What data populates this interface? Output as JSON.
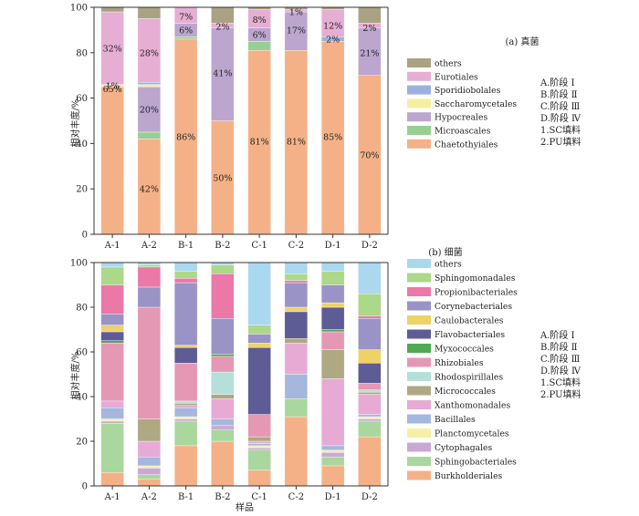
{
  "colors": {
    "Chaetothyiales": "#f4b187",
    "Microascales": "#97cf93",
    "Hypocreales": "#bca6ce",
    "Saccharomycetales": "#f6ef9f",
    "Sporidiobolales": "#9cb2dc",
    "Eurotiales": "#e6aed2",
    "others_fungi": "#a9a384",
    "Burkholderiales": "#f4b187",
    "Sphingobacteriales": "#a9d79d",
    "Cytophagales": "#c9a9d3",
    "Planctomycetales": "#f7efa9",
    "Bacillales": "#a5b7dd",
    "Xanthomonadales": "#e7aad5",
    "Micrococcales": "#aea883",
    "Rhodospirillales": "#b5dfd9",
    "Rhizobiales": "#e598b3",
    "Myxococcales": "#4fa854",
    "Flavobacteriales": "#5e5c95",
    "Caulobacterales": "#efd265",
    "Corynebacteriales": "#9a93c6",
    "Propionibacteriales": "#ea79a8",
    "Sphingomonadales": "#acd889",
    "others_bacteria": "#a9d8ef"
  },
  "stage_legend": [
    "A.阶段 Ⅰ",
    "B.阶段 Ⅱ",
    "C.阶段 Ⅲ",
    "D.阶段 Ⅳ",
    "1.SC填料",
    "2.PU填料"
  ],
  "common_xlabel": "样品",
  "chart_data": [
    {
      "type": "bar",
      "stacked": true,
      "title": "(a) 真菌",
      "ylabel": "相对丰度/%",
      "ylim": [
        0,
        100
      ],
      "yticks": [
        0,
        20,
        40,
        60,
        80,
        100
      ],
      "categories": [
        "A-1",
        "A-2",
        "B-1",
        "B-2",
        "C-1",
        "C-2",
        "D-1",
        "D-2"
      ],
      "series": [
        {
          "name": "Chaetothyiales",
          "color_key": "Chaetothyiales",
          "values": [
            65,
            42,
            86,
            50,
            81,
            81,
            85,
            70
          ]
        },
        {
          "name": "Microascales",
          "color_key": "Microascales",
          "values": [
            0,
            3,
            1,
            0,
            4,
            0,
            0,
            0
          ]
        },
        {
          "name": "Hypocreales",
          "color_key": "Hypocreales",
          "values": [
            0,
            20,
            6,
            41,
            6,
            17,
            0,
            21
          ]
        },
        {
          "name": "Saccharomycetales",
          "color_key": "Saccharomycetales",
          "values": [
            1,
            1,
            0,
            0,
            0,
            0,
            0,
            0
          ]
        },
        {
          "name": "Sporidiobolales",
          "color_key": "Sporidiobolales",
          "values": [
            0,
            1,
            0,
            0,
            0,
            0,
            2,
            0
          ]
        },
        {
          "name": "Eurotiales",
          "color_key": "Eurotiales",
          "values": [
            32,
            28,
            7,
            2,
            8,
            1,
            12,
            2
          ]
        },
        {
          "name": "others",
          "color_key": "others_fungi",
          "values": [
            2,
            5,
            0,
            7,
            1,
            1,
            1,
            7
          ]
        }
      ],
      "data_labels": [
        {
          "cat": "A-1",
          "y": 64,
          "text": "65%"
        },
        {
          "cat": "A-1",
          "y": 82,
          "text": "32%"
        },
        {
          "cat": "A-1",
          "y": 65.5,
          "text": "1%"
        },
        {
          "cat": "A-2",
          "y": 20,
          "text": "42%"
        },
        {
          "cat": "A-2",
          "y": 55,
          "text": "20%"
        },
        {
          "cat": "A-2",
          "y": 80,
          "text": "28%"
        },
        {
          "cat": "B-1",
          "y": 43,
          "text": "86%"
        },
        {
          "cat": "B-1",
          "y": 90,
          "text": "6%"
        },
        {
          "cat": "B-1",
          "y": 96,
          "text": "7%"
        },
        {
          "cat": "B-2",
          "y": 25,
          "text": "50%"
        },
        {
          "cat": "B-2",
          "y": 71,
          "text": "41%"
        },
        {
          "cat": "B-2",
          "y": 91.5,
          "text": "2%"
        },
        {
          "cat": "C-1",
          "y": 41,
          "text": "81%"
        },
        {
          "cat": "C-1",
          "y": 88,
          "text": "6%"
        },
        {
          "cat": "C-1",
          "y": 94.5,
          "text": "8%"
        },
        {
          "cat": "C-2",
          "y": 41,
          "text": "81%"
        },
        {
          "cat": "C-2",
          "y": 90,
          "text": "17%"
        },
        {
          "cat": "C-2",
          "y": 98,
          "text": "1%"
        },
        {
          "cat": "D-1",
          "y": 43,
          "text": "85%"
        },
        {
          "cat": "D-1",
          "y": 86,
          "text": "2%"
        },
        {
          "cat": "D-1",
          "y": 92,
          "text": "12%"
        },
        {
          "cat": "D-2",
          "y": 35,
          "text": "70%"
        },
        {
          "cat": "D-2",
          "y": 80,
          "text": "21%"
        },
        {
          "cat": "D-2",
          "y": 91,
          "text": "2%"
        }
      ],
      "legend_order": [
        "others",
        "Eurotiales",
        "Sporidiobolales",
        "Saccharomycetales",
        "Hypocreales",
        "Microascales",
        "Chaetothyiales"
      ]
    },
    {
      "type": "bar",
      "stacked": true,
      "title": "(b) 细菌",
      "ylabel": "相对丰度/%",
      "ylim": [
        0,
        100
      ],
      "yticks": [
        0,
        20,
        40,
        60,
        80,
        100
      ],
      "categories": [
        "A-1",
        "A-2",
        "B-1",
        "B-2",
        "C-1",
        "C-2",
        "D-1",
        "D-2"
      ],
      "series": [
        {
          "name": "Burkholderiales",
          "color_key": "Burkholderiales",
          "values": [
            6,
            3,
            18,
            20,
            7,
            31,
            9,
            22
          ]
        },
        {
          "name": "Sphingobacteriales",
          "color_key": "Sphingobacteriales",
          "values": [
            22,
            2,
            11,
            5,
            9,
            8,
            4,
            7
          ]
        },
        {
          "name": "Cytophagales",
          "color_key": "Cytophagales",
          "values": [
            1,
            3,
            1,
            2,
            1,
            0,
            2,
            1
          ]
        },
        {
          "name": "Planctomycetales",
          "color_key": "Planctomycetales",
          "values": [
            1,
            1,
            1,
            0,
            1,
            0,
            1,
            1
          ]
        },
        {
          "name": "Bacillales",
          "color_key": "Bacillales",
          "values": [
            5,
            4,
            4,
            3,
            1,
            11,
            2,
            1
          ]
        },
        {
          "name": "Xanthomonadales",
          "color_key": "Xanthomonadales",
          "values": [
            3,
            7,
            1,
            9,
            1,
            14,
            30,
            9
          ]
        },
        {
          "name": "Micrococcales",
          "color_key": "Micrococcales",
          "values": [
            0,
            10,
            1,
            2,
            2,
            2,
            13,
            1
          ]
        },
        {
          "name": "Rhodospirillales",
          "color_key": "Rhodospirillales",
          "values": [
            0,
            0,
            1,
            10,
            0,
            0,
            0,
            1
          ]
        },
        {
          "name": "Rhizobiales",
          "color_key": "Rhizobiales",
          "values": [
            26,
            50,
            17,
            7,
            10,
            0,
            8,
            3
          ]
        },
        {
          "name": "Myxococcales",
          "color_key": "Myxococcales",
          "values": [
            1,
            0,
            0,
            1,
            0,
            0,
            1,
            0
          ]
        },
        {
          "name": "Flavobacteriales",
          "color_key": "Flavobacteriales",
          "values": [
            4,
            0,
            7,
            0,
            30,
            12,
            10,
            9
          ]
        },
        {
          "name": "Caulobacterales",
          "color_key": "Caulobacterales",
          "values": [
            3,
            0,
            1,
            0,
            2,
            2,
            2,
            6
          ]
        },
        {
          "name": "Corynebacteriales",
          "color_key": "Corynebacteriales",
          "values": [
            5,
            9,
            28,
            16,
            4,
            11,
            8,
            14
          ]
        },
        {
          "name": "Propionibacteriales",
          "color_key": "Propionibacteriales",
          "values": [
            13,
            9,
            2,
            20,
            0,
            1,
            0,
            1
          ]
        },
        {
          "name": "Sphingomonadales",
          "color_key": "Sphingomonadales",
          "values": [
            8,
            1,
            3,
            4,
            4,
            3,
            6,
            10
          ]
        },
        {
          "name": "others",
          "color_key": "others_bacteria",
          "values": [
            2,
            1,
            4,
            1,
            28,
            5,
            4,
            14
          ]
        }
      ],
      "legend_order": [
        "others",
        "Sphingomonadales",
        "Propionibacteriales",
        "Corynebacteriales",
        "Caulobacterales",
        "Flavobacteriales",
        "Myxococcales",
        "Rhizobiales",
        "Rhodospirillales",
        "Micrococcales",
        "Xanthomonadales",
        "Bacillales",
        "Planctomycetales",
        "Cytophagales",
        "Sphingobacteriales",
        "Burkholderiales"
      ]
    }
  ]
}
